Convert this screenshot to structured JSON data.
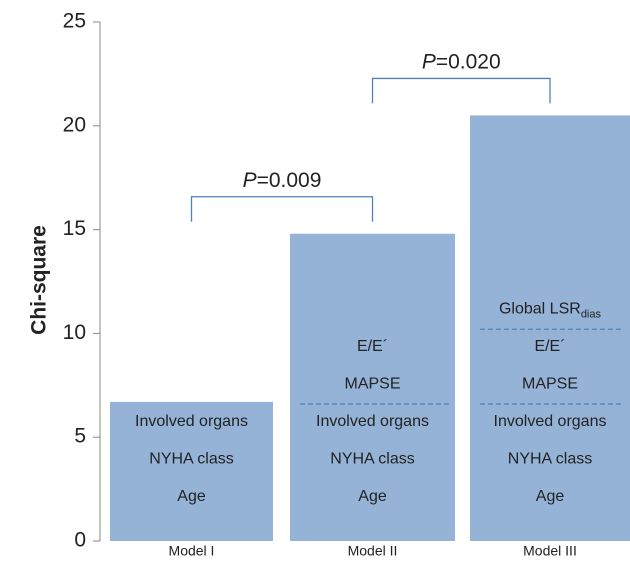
{
  "chart_data": {
    "type": "bar",
    "y_label": "Chi-square",
    "categories": [
      "Model I",
      "Model II",
      "Model III"
    ],
    "values": [
      6.7,
      14.8,
      20.5
    ],
    "color": "#95b3d7",
    "ylim": [
      0,
      25
    ],
    "yticks": [
      0,
      5,
      10,
      15,
      20,
      25
    ],
    "bar_labels": [
      [
        {
          "text": "Age"
        },
        {
          "text": "NYHA class"
        },
        {
          "text": "Involved organs"
        }
      ],
      [
        {
          "text": "Age"
        },
        {
          "text": "NYHA class"
        },
        {
          "text": "Involved organs"
        },
        {
          "text": "MAPSE"
        },
        {
          "text": "E/E´"
        }
      ],
      [
        {
          "text": "Age"
        },
        {
          "text": "NYHA class"
        },
        {
          "text": "Involved organs"
        },
        {
          "text": "MAPSE"
        },
        {
          "text": "E/E´"
        },
        {
          "text": "Global LSR",
          "sub": "dias"
        }
      ]
    ],
    "dividers": [
      null,
      [
        6.6
      ],
      [
        6.6,
        10.2
      ]
    ],
    "divider_color": "#4f81bd",
    "comparisons": [
      {
        "italic": "P",
        "text": "=0.009"
      },
      {
        "italic": "P",
        "text": "=0.020"
      }
    ],
    "bracket_color": "#4f81bd"
  }
}
